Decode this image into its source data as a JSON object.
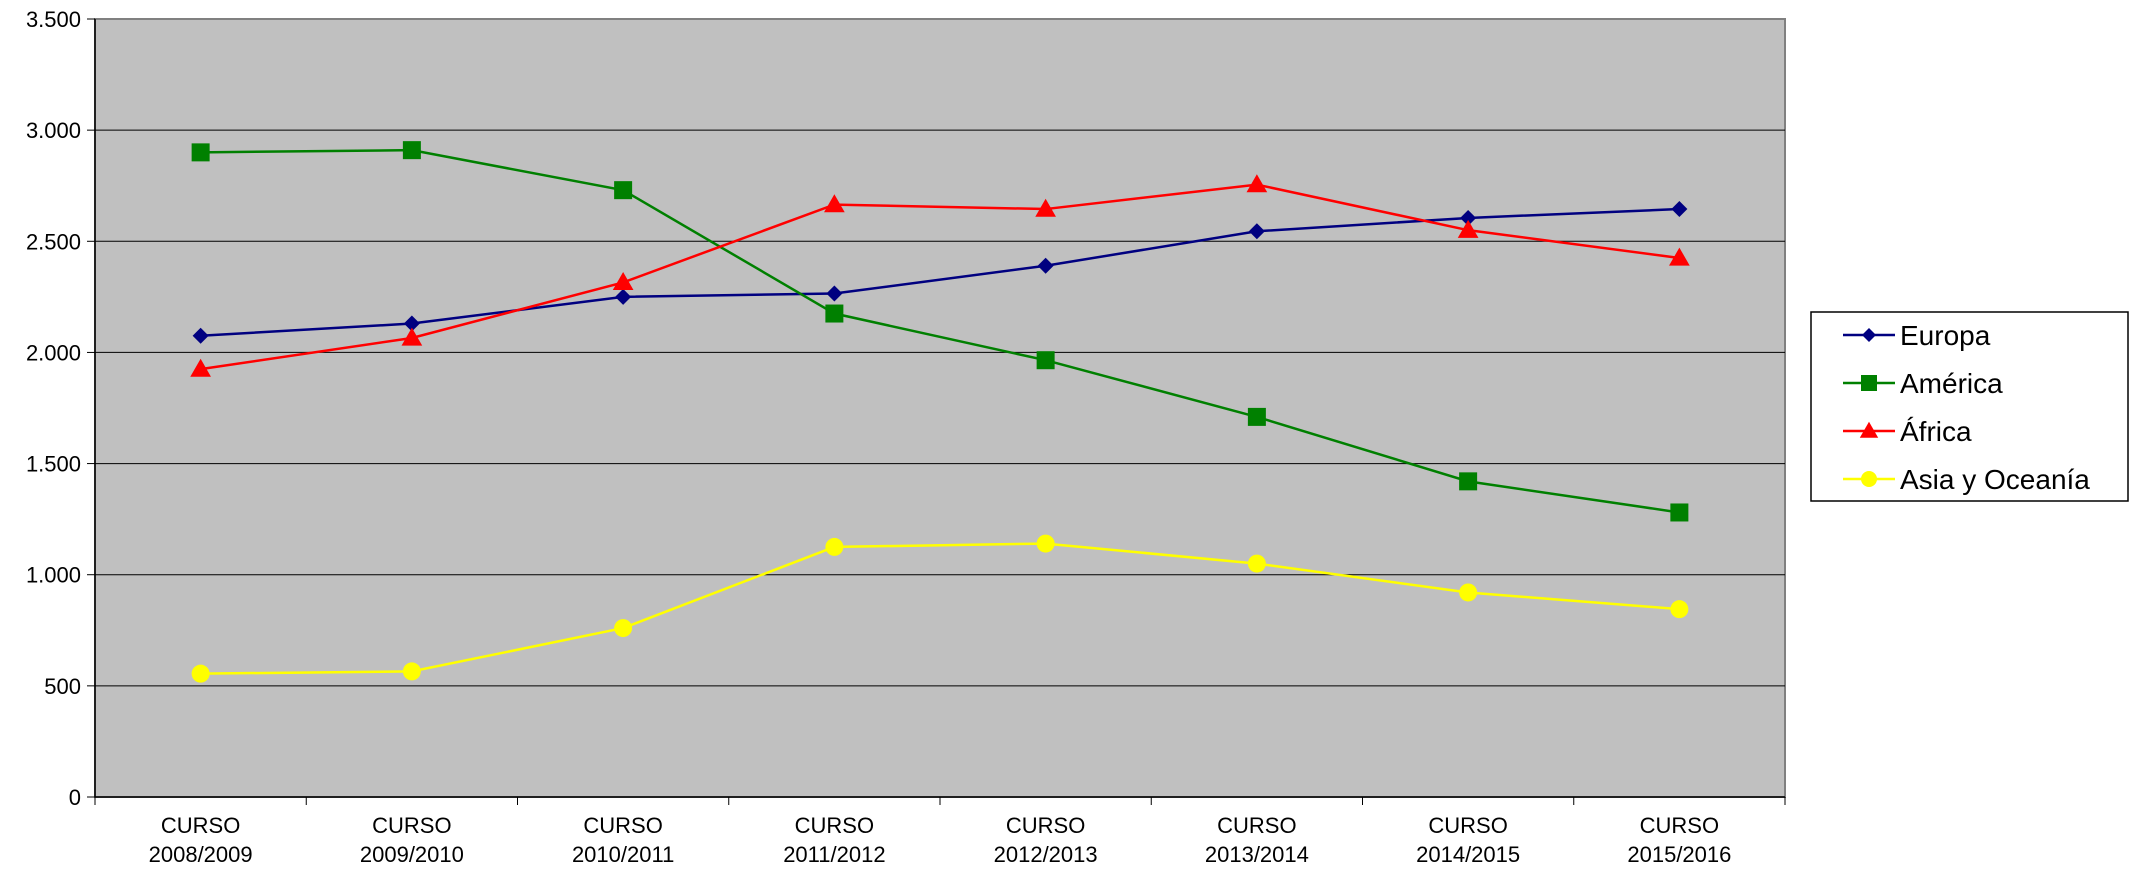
{
  "chart_data": {
    "type": "line",
    "categories": [
      [
        "CURSO",
        "2008/2009"
      ],
      [
        "CURSO",
        "2009/2010"
      ],
      [
        "CURSO",
        "2010/2011"
      ],
      [
        "CURSO",
        "2011/2012"
      ],
      [
        "CURSO",
        "2012/2013"
      ],
      [
        "CURSO",
        "2013/2014"
      ],
      [
        "CURSO",
        "2014/2015"
      ],
      [
        "CURSO",
        "2015/2016"
      ]
    ],
    "series": [
      {
        "name": "Europa",
        "color": "#000080",
        "marker": "diamond",
        "values": [
          2075,
          2130,
          2250,
          2265,
          2390,
          2545,
          2605,
          2645
        ]
      },
      {
        "name": "América",
        "color": "#008000",
        "marker": "square",
        "values": [
          2900,
          2910,
          2730,
          2175,
          1965,
          1710,
          1420,
          1280
        ]
      },
      {
        "name": "África",
        "color": "#ff0000",
        "marker": "triangle",
        "values": [
          1925,
          2065,
          2315,
          2665,
          2645,
          2755,
          2550,
          2425
        ]
      },
      {
        "name": "Asia y Oceanía",
        "color": "#ffff00",
        "marker": "circle",
        "values": [
          555,
          565,
          760,
          1125,
          1140,
          1050,
          920,
          845
        ]
      }
    ],
    "yticks": [
      0,
      500,
      1000,
      1500,
      2000,
      2500,
      3000,
      3500
    ],
    "ytick_labels": [
      "0",
      "500",
      "1.000",
      "1.500",
      "2.000",
      "2.500",
      "3.000",
      "3.500"
    ],
    "ylim": [
      0,
      3500
    ],
    "grid": true,
    "plot_background": "#c0c0c0",
    "legend_position": "right"
  }
}
